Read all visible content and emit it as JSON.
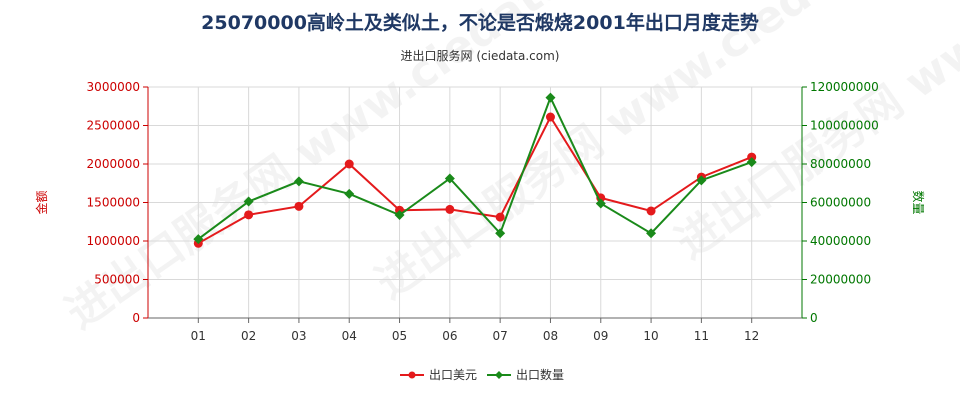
{
  "chart_data": {
    "type": "line",
    "title": "25070000高岭土及类似土，不论是否煅烧2001年出口月度走势",
    "subtitle": "进出口服务网 (ciedata.com)",
    "watermark": "进出口服务网 www.ciedata.com",
    "categories": [
      "01",
      "02",
      "03",
      "04",
      "05",
      "06",
      "07",
      "08",
      "09",
      "10",
      "11",
      "12"
    ],
    "left_axis": {
      "label": "金额",
      "min": 0,
      "max": 3000000,
      "ticks": [
        "0",
        "500000",
        "1000000",
        "1500000",
        "2000000",
        "2500000",
        "3000000"
      ],
      "tick_values": [
        0,
        500000,
        1000000,
        1500000,
        2000000,
        2500000,
        3000000
      ],
      "color": "#cc0000"
    },
    "right_axis": {
      "label": "数量",
      "min": 0,
      "max": 120000000,
      "ticks": [
        "0",
        "20000000",
        "40000000",
        "60000000",
        "80000000",
        "100000000",
        "120000000"
      ],
      "tick_values": [
        0,
        20000000,
        40000000,
        60000000,
        80000000,
        100000000,
        120000000
      ],
      "color": "#007700"
    },
    "series": [
      {
        "name": "出口美元",
        "axis": "left",
        "color": "#e41a1c",
        "marker": "circle",
        "values": [
          970000,
          1340000,
          1450000,
          2000000,
          1400000,
          1410000,
          1310000,
          2610000,
          1560000,
          1390000,
          1830000,
          2090000
        ]
      },
      {
        "name": "出口数量",
        "axis": "right",
        "color": "#1a8a1a",
        "marker": "diamond",
        "values": [
          41000000,
          60500000,
          71000000,
          64500000,
          53500000,
          72500000,
          44000000,
          114500000,
          59500000,
          44000000,
          71500000,
          81000000
        ]
      }
    ],
    "grid": true,
    "legend_position": "bottom-center"
  }
}
